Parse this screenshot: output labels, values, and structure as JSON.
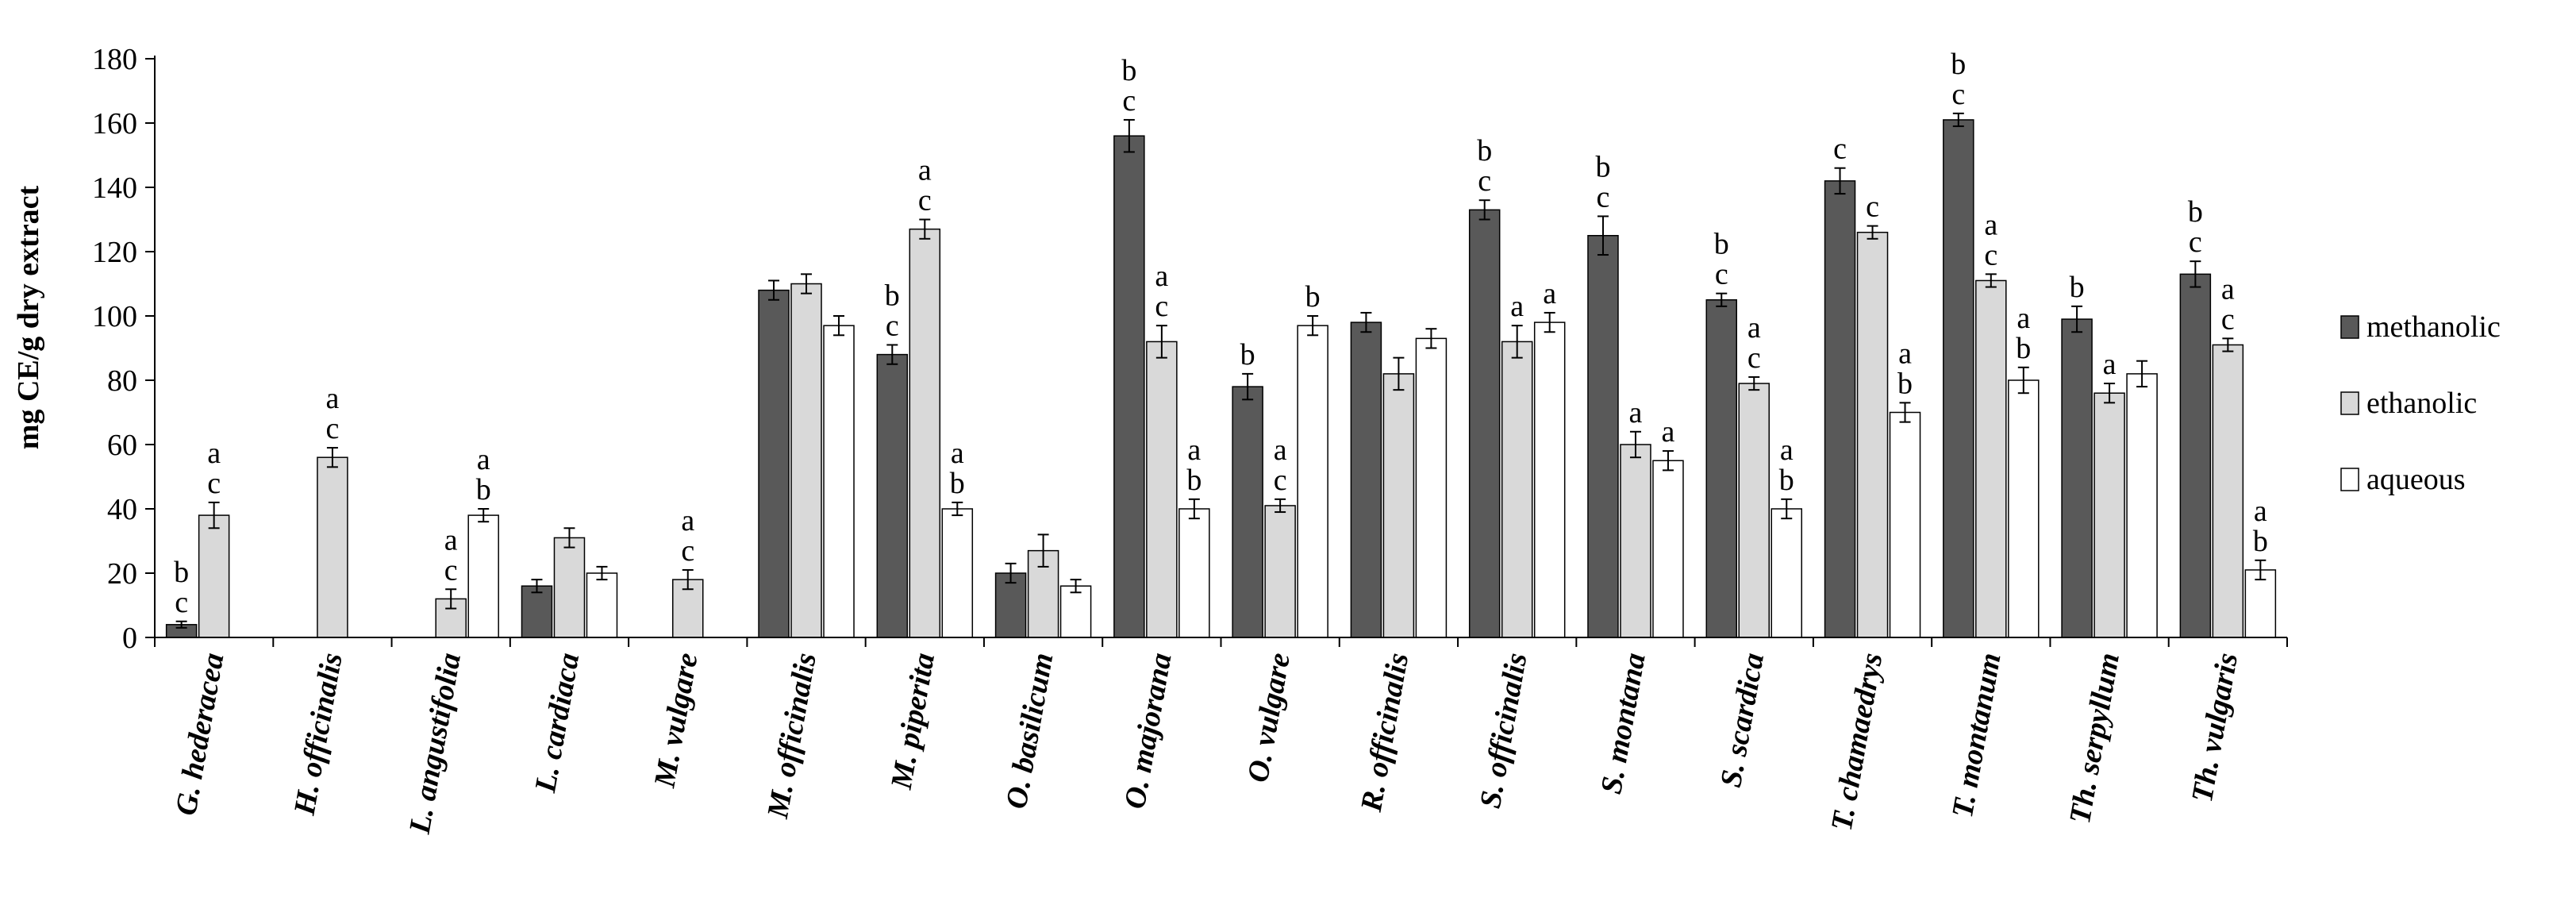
{
  "chart_data": {
    "type": "bar",
    "title": "",
    "xlabel": "",
    "ylabel": "mg CE/g dry extract",
    "ylim": [
      0,
      180
    ],
    "yticks": [
      0,
      20,
      40,
      60,
      80,
      100,
      120,
      140,
      160,
      180
    ],
    "grid": false,
    "legend_position": "right",
    "categories": [
      "G. hederacea",
      "H. officinalis",
      "L. angustifolia",
      "L. cardiaca",
      "M. vulgare",
      "M. officinalis",
      "M. piperita",
      "O. basilicum",
      "O. majorana",
      "O. vulgare",
      "R. officinalis",
      "S. officinalis",
      "S. montana",
      "S. scardica",
      "T. chamaedrys",
      "T. montanum",
      "Th. serpyllum",
      "Th. vulgaris"
    ],
    "series": [
      {
        "name": "methanolic",
        "color": "#595959",
        "values": [
          4,
          null,
          null,
          16,
          null,
          108,
          88,
          20,
          156,
          78,
          98,
          133,
          125,
          105,
          142,
          161,
          99,
          113
        ],
        "errors": [
          1,
          null,
          null,
          2,
          null,
          3,
          3,
          3,
          5,
          4,
          3,
          3,
          6,
          2,
          4,
          2,
          4,
          4
        ],
        "sig": [
          "b c",
          "",
          "",
          "",
          "",
          "",
          "b c",
          "",
          "b c",
          "b",
          "",
          "b c",
          "b c",
          "b c",
          "c",
          "b c",
          "b",
          "b c"
        ]
      },
      {
        "name": "ethanolic",
        "color": "#d9d9d9",
        "values": [
          38,
          56,
          12,
          31,
          18,
          110,
          127,
          27,
          92,
          41,
          82,
          92,
          60,
          79,
          126,
          111,
          76,
          91
        ],
        "errors": [
          4,
          3,
          3,
          3,
          3,
          3,
          3,
          5,
          5,
          2,
          5,
          5,
          4,
          2,
          2,
          2,
          3,
          2
        ],
        "sig": [
          "a c",
          "a c",
          "a c",
          "",
          "a c",
          "",
          "a c",
          "",
          "a c",
          "a c",
          "",
          "a",
          "a",
          "a c",
          "c",
          "a c",
          "a",
          "a c"
        ]
      },
      {
        "name": "aqueous",
        "color": "#ffffff",
        "values": [
          null,
          null,
          38,
          20,
          null,
          97,
          40,
          16,
          40,
          97,
          93,
          98,
          55,
          40,
          70,
          80,
          82,
          21
        ],
        "errors": [
          null,
          null,
          2,
          2,
          null,
          3,
          2,
          2,
          3,
          3,
          3,
          3,
          3,
          3,
          3,
          4,
          4,
          3
        ],
        "sig": [
          "",
          "",
          "a b",
          "",
          "",
          "",
          "a b",
          "",
          "a b",
          "b",
          "",
          "a",
          "a",
          "a b",
          "a b",
          "a b",
          "",
          "a b"
        ]
      }
    ]
  }
}
